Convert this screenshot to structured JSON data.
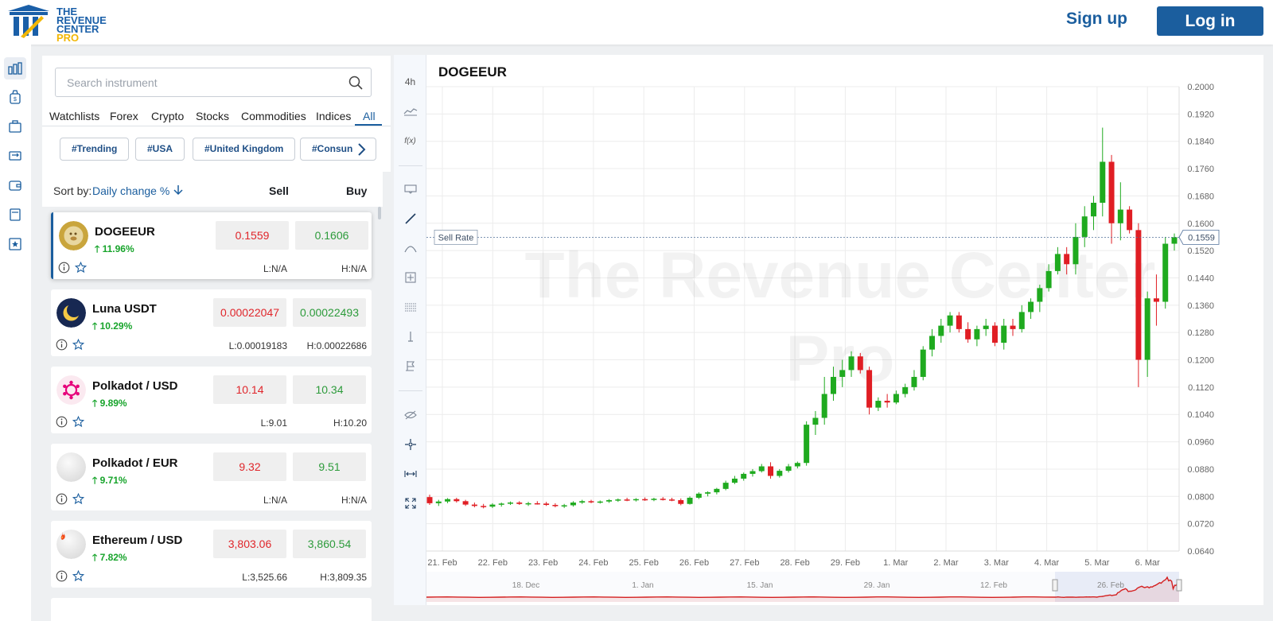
{
  "header": {
    "logo_line1": "THE",
    "logo_line2": "REVENUE",
    "logo_line3": "CENTER",
    "logo_line4": "PRO",
    "signup_label": "Sign up",
    "login_label": "Log in"
  },
  "search": {
    "placeholder": "Search instrument"
  },
  "tabs": [
    "Watchlists",
    "Forex",
    "Crypto",
    "Stocks",
    "Commodities",
    "Indices",
    "All"
  ],
  "active_tab": "All",
  "chips": [
    "#Trending",
    "#USA",
    "#United Kingdom",
    "#Consun"
  ],
  "sort": {
    "label": "Sort by:",
    "value": "Daily change %",
    "sell_header": "Sell",
    "buy_header": "Buy"
  },
  "instruments": [
    {
      "name": "DOGEEUR",
      "change": "11.96%",
      "sell": "0.1559",
      "buy": "0.1606",
      "low": "L:N/A",
      "high": "H:N/A",
      "icon": "doge-icon",
      "selected": true
    },
    {
      "name": "Luna USDT",
      "change": "10.29%",
      "sell": "0.00022047",
      "buy": "0.00022493",
      "low": "L:0.00019183",
      "high": "H:0.00022686",
      "icon": "luna-icon"
    },
    {
      "name": "Polkadot / USD",
      "change": "9.89%",
      "sell": "10.14",
      "buy": "10.34",
      "low": "L:9.01",
      "high": "H:10.20",
      "icon": "polkadot-icon"
    },
    {
      "name": "Polkadot / EUR",
      "change": "9.71%",
      "sell": "9.32",
      "buy": "9.51",
      "low": "L:N/A",
      "high": "H:N/A",
      "icon": "polkadot-eur-icon"
    },
    {
      "name": "Ethereum / USD",
      "change": "7.82%",
      "sell": "3,803.06",
      "buy": "3,860.54",
      "low": "L:3,525.66",
      "high": "H:3,809.35",
      "icon": "ethereum-icon"
    }
  ],
  "chart": {
    "symbol": "DOGEEUR",
    "timeframe": "4h",
    "fx_label": "f(x)",
    "watermark_line1": "The Revenue Center",
    "watermark_line2": "Pro",
    "sell_rate_label": "Sell Rate",
    "current_value_label": "0.1559"
  },
  "chart_data": {
    "type": "candlestick",
    "title": "DOGEEUR",
    "ylim": [
      0.064,
      0.2
    ],
    "yticks": [
      "0.2000",
      "0.1920",
      "0.1840",
      "0.1760",
      "0.1680",
      "0.1600",
      "0.1520",
      "0.1440",
      "0.1360",
      "0.1280",
      "0.1200",
      "0.1120",
      "0.1040",
      "0.0960",
      "0.0880",
      "0.0800",
      "0.0720",
      "0.0640"
    ],
    "xticks": [
      "21. Feb",
      "22. Feb",
      "23. Feb",
      "24. Feb",
      "25. Feb",
      "26. Feb",
      "27. Feb",
      "28. Feb",
      "29. Feb",
      "1. Mar",
      "2. Mar",
      "3. Mar",
      "4. Mar",
      "5. Mar",
      "6. Mar"
    ],
    "navigator_labels": [
      "18. Dec",
      "1. Jan",
      "15. Jan",
      "29. Jan",
      "12. Feb",
      "26. Feb"
    ],
    "sell_rate": 0.1559,
    "colors": {
      "up": "#1faa1f",
      "down": "#e01e24",
      "navigator": "#d42020"
    },
    "candles": [
      [
        0.0798,
        0.0805,
        0.0775,
        0.078
      ],
      [
        0.078,
        0.079,
        0.0772,
        0.0785
      ],
      [
        0.0785,
        0.0795,
        0.078,
        0.0792
      ],
      [
        0.0792,
        0.0796,
        0.0782,
        0.0786
      ],
      [
        0.0786,
        0.079,
        0.0772,
        0.0776
      ],
      [
        0.0776,
        0.0782,
        0.0768,
        0.0772
      ],
      [
        0.0772,
        0.0778,
        0.0765,
        0.077
      ],
      [
        0.077,
        0.078,
        0.0766,
        0.0776
      ],
      [
        0.0776,
        0.0782,
        0.077,
        0.0779
      ],
      [
        0.0779,
        0.0785,
        0.0775,
        0.0782
      ],
      [
        0.0782,
        0.0786,
        0.0775,
        0.0778
      ],
      [
        0.0778,
        0.0784,
        0.0772,
        0.078
      ],
      [
        0.078,
        0.0786,
        0.0776,
        0.0779
      ],
      [
        0.0779,
        0.0784,
        0.0772,
        0.0775
      ],
      [
        0.0775,
        0.078,
        0.0768,
        0.0772
      ],
      [
        0.0772,
        0.0778,
        0.0766,
        0.0774
      ],
      [
        0.0774,
        0.0786,
        0.077,
        0.0782
      ],
      [
        0.0782,
        0.079,
        0.0778,
        0.0786
      ],
      [
        0.0786,
        0.079,
        0.078,
        0.0783
      ],
      [
        0.0783,
        0.0788,
        0.0779,
        0.0785
      ],
      [
        0.0785,
        0.0792,
        0.0781,
        0.0789
      ],
      [
        0.0789,
        0.0794,
        0.0784,
        0.0791
      ],
      [
        0.0791,
        0.0796,
        0.0786,
        0.0789
      ],
      [
        0.0789,
        0.0795,
        0.0785,
        0.0792
      ],
      [
        0.0792,
        0.0797,
        0.0787,
        0.079
      ],
      [
        0.079,
        0.0796,
        0.0786,
        0.0793
      ],
      [
        0.0793,
        0.0798,
        0.0788,
        0.0791
      ],
      [
        0.0791,
        0.0796,
        0.0786,
        0.0789
      ],
      [
        0.0789,
        0.0794,
        0.0774,
        0.0778
      ],
      [
        0.0778,
        0.08,
        0.0776,
        0.0796
      ],
      [
        0.0796,
        0.0812,
        0.0792,
        0.0808
      ],
      [
        0.0808,
        0.0815,
        0.08,
        0.0812
      ],
      [
        0.0812,
        0.0825,
        0.0806,
        0.0822
      ],
      [
        0.0822,
        0.0846,
        0.0818,
        0.084
      ],
      [
        0.084,
        0.086,
        0.0836,
        0.0852
      ],
      [
        0.0852,
        0.087,
        0.0846,
        0.0866
      ],
      [
        0.0866,
        0.088,
        0.0858,
        0.0874
      ],
      [
        0.0874,
        0.0895,
        0.087,
        0.0888
      ],
      [
        0.0888,
        0.09,
        0.0852,
        0.086
      ],
      [
        0.086,
        0.088,
        0.0855,
        0.0875
      ],
      [
        0.0875,
        0.0895,
        0.087,
        0.0888
      ],
      [
        0.0888,
        0.0902,
        0.0882,
        0.0898
      ],
      [
        0.0898,
        0.102,
        0.089,
        0.101
      ],
      [
        0.101,
        0.105,
        0.098,
        0.103
      ],
      [
        0.103,
        0.115,
        0.101,
        0.11
      ],
      [
        0.11,
        0.118,
        0.108,
        0.115
      ],
      [
        0.115,
        0.12,
        0.112,
        0.117
      ],
      [
        0.117,
        0.1225,
        0.115,
        0.121
      ],
      [
        0.121,
        0.122,
        0.116,
        0.117
      ],
      [
        0.117,
        0.118,
        0.104,
        0.106
      ],
      [
        0.106,
        0.109,
        0.105,
        0.108
      ],
      [
        0.108,
        0.11,
        0.106,
        0.1075
      ],
      [
        0.1075,
        0.111,
        0.107,
        0.11
      ],
      [
        0.11,
        0.113,
        0.109,
        0.112
      ],
      [
        0.112,
        0.117,
        0.111,
        0.115
      ],
      [
        0.115,
        0.124,
        0.114,
        0.123
      ],
      [
        0.123,
        0.129,
        0.121,
        0.127
      ],
      [
        0.127,
        0.132,
        0.125,
        0.13
      ],
      [
        0.13,
        0.134,
        0.128,
        0.133
      ],
      [
        0.133,
        0.134,
        0.128,
        0.129
      ],
      [
        0.129,
        0.131,
        0.125,
        0.126
      ],
      [
        0.126,
        0.13,
        0.124,
        0.129
      ],
      [
        0.129,
        0.132,
        0.127,
        0.13
      ],
      [
        0.13,
        0.131,
        0.124,
        0.125
      ],
      [
        0.125,
        0.132,
        0.123,
        0.13
      ],
      [
        0.13,
        0.132,
        0.127,
        0.129
      ],
      [
        0.129,
        0.136,
        0.128,
        0.134
      ],
      [
        0.134,
        0.138,
        0.132,
        0.137
      ],
      [
        0.137,
        0.142,
        0.134,
        0.141
      ],
      [
        0.141,
        0.148,
        0.14,
        0.146
      ],
      [
        0.146,
        0.153,
        0.145,
        0.151
      ],
      [
        0.151,
        0.153,
        0.145,
        0.148
      ],
      [
        0.148,
        0.16,
        0.145,
        0.156
      ],
      [
        0.156,
        0.165,
        0.153,
        0.162
      ],
      [
        0.162,
        0.168,
        0.158,
        0.166
      ],
      [
        0.166,
        0.188,
        0.162,
        0.178
      ],
      [
        0.178,
        0.18,
        0.154,
        0.16
      ],
      [
        0.16,
        0.172,
        0.155,
        0.164
      ],
      [
        0.164,
        0.165,
        0.157,
        0.158
      ],
      [
        0.158,
        0.16,
        0.112,
        0.12
      ],
      [
        0.12,
        0.14,
        0.115,
        0.138
      ],
      [
        0.138,
        0.145,
        0.13,
        0.137
      ],
      [
        0.137,
        0.156,
        0.135,
        0.154
      ],
      [
        0.154,
        0.157,
        0.152,
        0.1559
      ]
    ]
  }
}
